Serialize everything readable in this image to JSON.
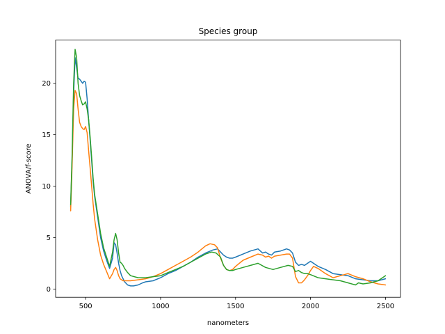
{
  "chart_data": {
    "type": "line",
    "title": "Species group",
    "xlabel": "nanometers",
    "ylabel": "ANOVA/f-score",
    "xlim": [
      300,
      2600
    ],
    "ylim": [
      -0.8,
      24.2
    ],
    "xticks": [
      500,
      1000,
      1500,
      2000,
      2500
    ],
    "yticks": [
      0,
      5,
      10,
      15,
      20
    ],
    "grid": false,
    "legend": "none",
    "series": [
      {
        "color": "#1f77b4",
        "x": [
          400,
          410,
          420,
          430,
          440,
          450,
          460,
          470,
          480,
          490,
          500,
          510,
          520,
          530,
          540,
          550,
          560,
          580,
          600,
          620,
          640,
          660,
          680,
          690,
          700,
          710,
          720,
          730,
          740,
          750,
          760,
          780,
          800,
          820,
          850,
          880,
          900,
          950,
          1000,
          1050,
          1100,
          1150,
          1200,
          1250,
          1300,
          1350,
          1380,
          1400,
          1420,
          1440,
          1460,
          1480,
          1500,
          1550,
          1600,
          1650,
          1680,
          1700,
          1720,
          1740,
          1760,
          1800,
          1840,
          1860,
          1880,
          1900,
          1920,
          1940,
          1960,
          1980,
          2000,
          2020,
          2050,
          2100,
          2150,
          2200,
          2250,
          2300,
          2350,
          2400,
          2450,
          2500
        ],
        "y": [
          8.0,
          12.5,
          19.0,
          22.5,
          21.5,
          20.5,
          20.4,
          20.2,
          20.0,
          20.2,
          20.1,
          18.5,
          16.5,
          14.5,
          12.5,
          10.5,
          9.0,
          7.0,
          5.0,
          3.7,
          2.8,
          2.0,
          3.0,
          4.5,
          4.3,
          3.5,
          2.5,
          1.8,
          1.3,
          1.0,
          0.7,
          0.4,
          0.3,
          0.3,
          0.4,
          0.6,
          0.7,
          0.8,
          1.1,
          1.5,
          1.8,
          2.2,
          2.6,
          3.1,
          3.5,
          3.8,
          3.9,
          3.6,
          3.3,
          3.1,
          3.0,
          3.0,
          3.1,
          3.4,
          3.7,
          3.9,
          3.5,
          3.6,
          3.4,
          3.3,
          3.6,
          3.7,
          3.9,
          3.8,
          3.5,
          2.6,
          2.3,
          2.4,
          2.3,
          2.5,
          2.7,
          2.5,
          2.2,
          1.9,
          1.5,
          1.4,
          1.3,
          1.0,
          0.9,
          0.8,
          0.8,
          1.0
        ]
      },
      {
        "color": "#ff7f0e",
        "x": [
          400,
          410,
          420,
          430,
          440,
          450,
          460,
          470,
          480,
          490,
          500,
          510,
          520,
          530,
          540,
          550,
          560,
          580,
          600,
          620,
          640,
          660,
          680,
          690,
          700,
          710,
          720,
          730,
          740,
          750,
          760,
          780,
          800,
          850,
          900,
          950,
          1000,
          1050,
          1100,
          1150,
          1200,
          1250,
          1300,
          1330,
          1360,
          1380,
          1400,
          1420,
          1440,
          1460,
          1480,
          1500,
          1550,
          1600,
          1650,
          1680,
          1700,
          1720,
          1740,
          1760,
          1800,
          1840,
          1860,
          1880,
          1900,
          1920,
          1940,
          1960,
          1980,
          2000,
          2020,
          2050,
          2100,
          2150,
          2200,
          2250,
          2300,
          2350,
          2400,
          2450,
          2500
        ],
        "y": [
          7.6,
          12.0,
          17.5,
          19.3,
          19.0,
          17.5,
          16.2,
          15.8,
          15.6,
          15.5,
          15.8,
          15.2,
          13.5,
          11.8,
          10.0,
          8.3,
          6.8,
          4.8,
          3.3,
          2.4,
          1.7,
          1.0,
          1.5,
          1.9,
          2.1,
          1.8,
          1.3,
          1.0,
          0.9,
          0.8,
          0.8,
          0.8,
          0.8,
          0.9,
          1.0,
          1.2,
          1.5,
          1.9,
          2.3,
          2.7,
          3.1,
          3.6,
          4.2,
          4.4,
          4.3,
          4.0,
          3.0,
          2.3,
          1.9,
          1.8,
          1.9,
          2.2,
          2.8,
          3.1,
          3.4,
          3.3,
          3.1,
          3.2,
          3.0,
          3.2,
          3.3,
          3.4,
          3.4,
          3.0,
          1.2,
          0.6,
          0.6,
          0.9,
          1.3,
          1.8,
          2.2,
          2.0,
          1.5,
          1.1,
          1.3,
          1.5,
          1.2,
          1.0,
          0.7,
          0.5,
          0.4
        ]
      },
      {
        "color": "#2ca02c",
        "x": [
          400,
          410,
          420,
          430,
          440,
          450,
          460,
          470,
          480,
          490,
          500,
          510,
          520,
          530,
          540,
          550,
          560,
          580,
          600,
          620,
          640,
          660,
          680,
          690,
          700,
          710,
          720,
          730,
          740,
          750,
          760,
          780,
          800,
          850,
          900,
          950,
          1000,
          1050,
          1100,
          1150,
          1200,
          1250,
          1300,
          1340,
          1370,
          1400,
          1420,
          1440,
          1460,
          1480,
          1500,
          1550,
          1600,
          1650,
          1700,
          1750,
          1800,
          1850,
          1880,
          1900,
          1920,
          1940,
          1960,
          1980,
          2000,
          2050,
          2100,
          2150,
          2200,
          2250,
          2300,
          2320,
          2350,
          2400,
          2450,
          2500
        ],
        "y": [
          8.2,
          13.0,
          20.0,
          23.3,
          22.5,
          20.0,
          18.8,
          18.3,
          17.9,
          18.0,
          18.2,
          17.5,
          16.5,
          14.8,
          12.8,
          10.8,
          9.2,
          7.3,
          5.4,
          4.0,
          3.1,
          2.2,
          3.6,
          4.8,
          5.4,
          4.8,
          3.5,
          2.6,
          2.5,
          2.3,
          2.0,
          1.6,
          1.3,
          1.1,
          1.1,
          1.2,
          1.3,
          1.6,
          1.9,
          2.2,
          2.6,
          3.0,
          3.4,
          3.6,
          3.5,
          3.1,
          2.3,
          1.9,
          1.8,
          1.8,
          1.9,
          2.1,
          2.3,
          2.5,
          2.1,
          1.9,
          2.1,
          2.3,
          2.2,
          1.7,
          1.8,
          1.6,
          1.5,
          1.5,
          1.4,
          1.1,
          1.0,
          0.9,
          0.8,
          0.6,
          0.4,
          0.6,
          0.5,
          0.6,
          0.8,
          1.3
        ]
      }
    ]
  }
}
